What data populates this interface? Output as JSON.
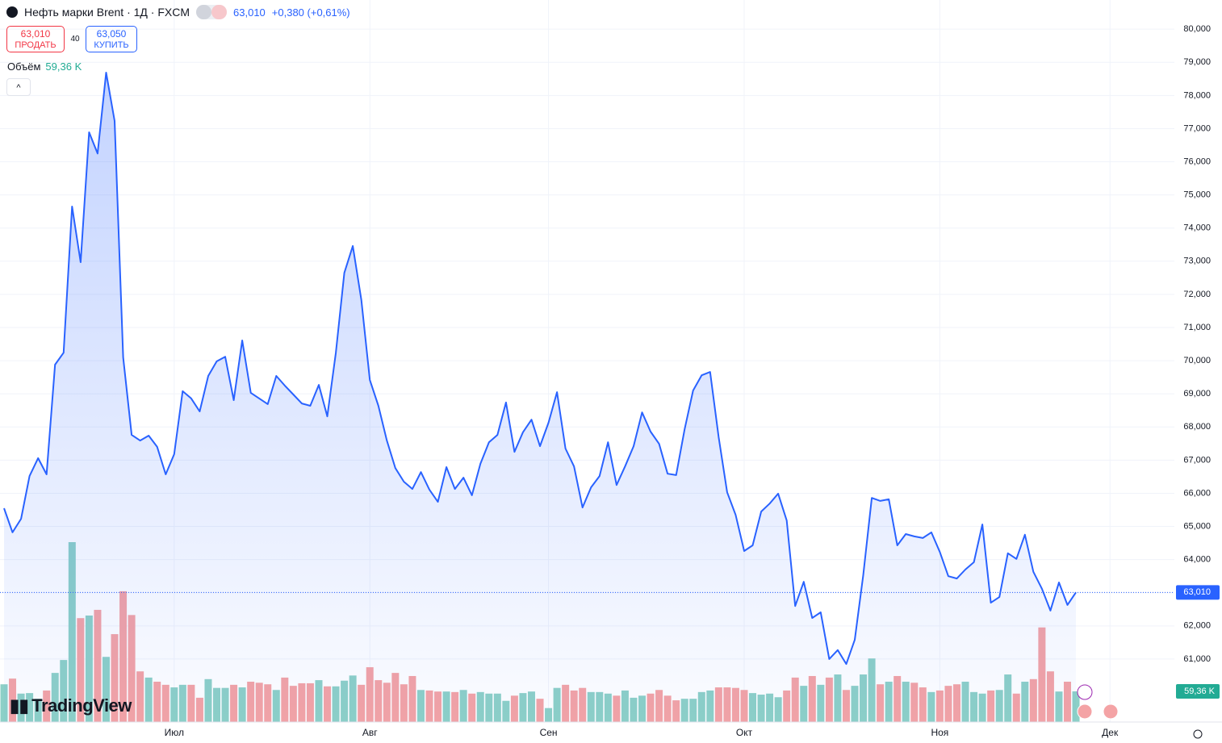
{
  "chart_data": {
    "type": "line",
    "title": "Нефть марки Brent · 1Д · FXCM",
    "last_value_label": "63,010",
    "change": "+0,380 (+0,61%)",
    "sell": {
      "price": "63,010",
      "label": "ПРОДАТЬ"
    },
    "spread": "40",
    "buy": {
      "price": "63,050",
      "label": "КУПИТЬ"
    },
    "volume_title": "Объём",
    "volume_value_label": "59,36 K",
    "brand": "TradingView",
    "color": "#2962ff",
    "grid": true,
    "categories": [
      null,
      null,
      null,
      null,
      null,
      null,
      null,
      null,
      null,
      null,
      null,
      null,
      null,
      null,
      null,
      null,
      null,
      null,
      null,
      null,
      "Июл",
      null,
      null,
      null,
      null,
      null,
      null,
      null,
      null,
      null,
      null,
      null,
      null,
      null,
      null,
      null,
      null,
      null,
      null,
      null,
      null,
      null,
      null,
      "Авг",
      null,
      null,
      null,
      null,
      null,
      null,
      null,
      null,
      null,
      null,
      null,
      null,
      null,
      null,
      null,
      null,
      null,
      null,
      null,
      null,
      "Сен",
      null,
      null,
      null,
      null,
      null,
      null,
      null,
      null,
      null,
      null,
      null,
      null,
      null,
      null,
      null,
      null,
      null,
      null,
      null,
      null,
      null,
      null,
      "Окт",
      null,
      null,
      null,
      null,
      null,
      null,
      null,
      null,
      null,
      null,
      null,
      null,
      null,
      null,
      null,
      null,
      null,
      null,
      null,
      null,
      null,
      null,
      "Ноя",
      null,
      null,
      null,
      null,
      null,
      null,
      null,
      null,
      null,
      null,
      null,
      null,
      null,
      null,
      null,
      null,
      null,
      null,
      null,
      "Дек"
    ],
    "values": [
      65550,
      64820,
      65230,
      66520,
      67060,
      66570,
      69880,
      70240,
      74650,
      72970,
      76890,
      76250,
      78690,
      77230,
      70100,
      67760,
      67590,
      67740,
      67400,
      66570,
      67180,
      69080,
      68860,
      68470,
      69540,
      69980,
      70120,
      68810,
      70610,
      69030,
      68860,
      68690,
      69540,
      69250,
      68980,
      68710,
      68640,
      69270,
      68320,
      70240,
      72650,
      73460,
      71830,
      69420,
      68640,
      67590,
      66760,
      66350,
      66130,
      66640,
      66110,
      65740,
      66790,
      66130,
      66470,
      65940,
      66890,
      67540,
      67760,
      68740,
      67250,
      67840,
      68220,
      67420,
      68130,
      69050,
      67350,
      66810,
      65570,
      66180,
      66520,
      67540,
      66250,
      66810,
      67420,
      68440,
      67860,
      67490,
      66590,
      66550,
      67930,
      69100,
      69560,
      69660,
      67690,
      66030,
      65350,
      64260,
      64430,
      65450,
      65690,
      65990,
      65180,
      62600,
      63330,
      62240,
      62410,
      61000,
      61270,
      60850,
      61580,
      63530,
      65860,
      65770,
      65820,
      64430,
      64770,
      64700,
      64650,
      64820,
      64230,
      63500,
      63430,
      63700,
      63920,
      65060,
      62700,
      62870,
      64190,
      64020,
      64750,
      63630,
      63120,
      62460,
      63310,
      62630,
      63010,
      null,
      null,
      null,
      null
    ],
    "volume": {
      "up_color": "#8dd0c7",
      "down_color": "#f4a3a5",
      "values": [
        73,
        84,
        55,
        56,
        45,
        61,
        95,
        120,
        348,
        201,
        206,
        217,
        126,
        170,
        253,
        207,
        98,
        86,
        78,
        72,
        67,
        72,
        72,
        47,
        83,
        66,
        66,
        72,
        67,
        78,
        76,
        73,
        62,
        86,
        70,
        75,
        75,
        81,
        69,
        69,
        80,
        90,
        72,
        106,
        81,
        76,
        95,
        73,
        89,
        62,
        61,
        59,
        59,
        58,
        62,
        55,
        58,
        55,
        55,
        41,
        51,
        56,
        59,
        45,
        27,
        66,
        72,
        61,
        66,
        58,
        58,
        55,
        51,
        61,
        47,
        51,
        55,
        62,
        51,
        42,
        45,
        45,
        58,
        61,
        67,
        67,
        66,
        62,
        56,
        53,
        55,
        48,
        61,
        86,
        70,
        89,
        72,
        86,
        92,
        62,
        70,
        92,
        123,
        73,
        78,
        89,
        78,
        76,
        67,
        58,
        61,
        70,
        73,
        78,
        58,
        55,
        61,
        62,
        92,
        55,
        78,
        83,
        183,
        98,
        59,
        78,
        59.36,
        null,
        null,
        null,
        null
      ]
    },
    "ylim": [
      59100,
      80880
    ],
    "yticks": [
      {
        "value": 61000,
        "label": "61,000"
      },
      {
        "value": 62000,
        "label": "62,000"
      },
      {
        "value": 63000,
        "label": "63,000"
      },
      {
        "value": 64000,
        "label": "64,000"
      },
      {
        "value": 65000,
        "label": "65,000"
      },
      {
        "value": 66000,
        "label": "66,000"
      },
      {
        "value": 67000,
        "label": "67,000"
      },
      {
        "value": 68000,
        "label": "68,000"
      },
      {
        "value": 69000,
        "label": "69,000"
      },
      {
        "value": 70000,
        "label": "70,000"
      },
      {
        "value": 71000,
        "label": "71,000"
      },
      {
        "value": 72000,
        "label": "72,000"
      },
      {
        "value": 73000,
        "label": "73,000"
      },
      {
        "value": 74000,
        "label": "74,000"
      },
      {
        "value": 75000,
        "label": "75,000"
      },
      {
        "value": 76000,
        "label": "76,000"
      },
      {
        "value": 77000,
        "label": "77,000"
      },
      {
        "value": 78000,
        "label": "78,000"
      },
      {
        "value": 79000,
        "label": "79,000"
      },
      {
        "value": 80000,
        "label": "80,000"
      }
    ]
  }
}
